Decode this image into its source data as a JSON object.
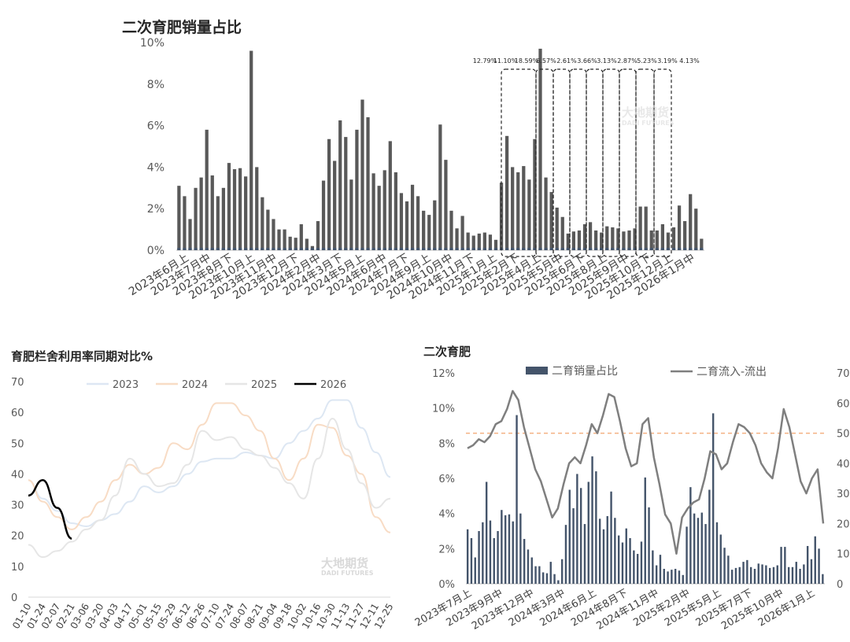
{
  "chart_data": [
    {
      "type": "bar",
      "title": "二次育肥销量占比",
      "yticks": [
        "0%",
        "2%",
        "4%",
        "6%",
        "8%",
        "10%"
      ],
      "ylim": [
        0,
        10
      ],
      "xticks": [
        "2023年6月上",
        "2023年7月中",
        "2023年8月下",
        "2023年10月上",
        "2023年11月中",
        "2023年12月下",
        "2024年2月中",
        "2024年3月下",
        "2024年5月上",
        "2024年6月中",
        "2024年7月下",
        "2024年9月上",
        "2024年10月中",
        "2024年11月下",
        "2025年1月上",
        "2025年2月下",
        "2025年4月上",
        "2025年5月中",
        "2025年6月下",
        "2025年8月上",
        "2025年9月中",
        "2025年10月下",
        "2025年12月上",
        "2026年1月中"
      ],
      "values": [
        3.1,
        2.6,
        1.5,
        3.0,
        3.5,
        5.8,
        3.6,
        2.6,
        3.0,
        4.2,
        3.9,
        3.95,
        3.55,
        9.6,
        4.0,
        2.55,
        1.95,
        1.5,
        1.0,
        1.0,
        0.65,
        0.6,
        1.25,
        0.55,
        0.2,
        1.4,
        3.35,
        5.35,
        4.3,
        6.25,
        5.45,
        3.4,
        5.8,
        7.25,
        6.4,
        3.7,
        3.1,
        3.85,
        5.25,
        3.75,
        2.75,
        2.35,
        3.15,
        2.6,
        1.9,
        1.7,
        2.4,
        6.05,
        4.35,
        1.9,
        1.05,
        1.65,
        0.85,
        0.7,
        0.8,
        0.85,
        0.75,
        0.5,
        3.25,
        5.5,
        4.0,
        3.75,
        4.05,
        3.4,
        5.35,
        9.7,
        3.5,
        2.8,
        2.05,
        1.6,
        0.8,
        0.9,
        0.95,
        1.25,
        1.35,
        0.95,
        0.85,
        1.15,
        1.1,
        1.05,
        0.9,
        0.95,
        1.05,
        2.1,
        2.1,
        0.95,
        0.95,
        1.25,
        0.85,
        1.1,
        2.15,
        1.4,
        2.7,
        2.0,
        0.55
      ],
      "box_labels": [
        "12.79%",
        "11.10%",
        "18.59%",
        "6.57%",
        "2.61%",
        "3.66%",
        "3.13%",
        "2.87%",
        "5.23%",
        "3.19%",
        "4.13%"
      ]
    },
    {
      "type": "line",
      "title": "育肥栏舍利用率同期对比%",
      "ylim": [
        0,
        70
      ],
      "yticks": [
        "0",
        "10",
        "20",
        "30",
        "40",
        "50",
        "60",
        "70"
      ],
      "xticks": [
        "01-10",
        "01-24",
        "02-07",
        "02-21",
        "03-06",
        "03-20",
        "04-03",
        "04-17",
        "05-01",
        "05-15",
        "05-29",
        "06-12",
        "06-26",
        "07-10",
        "07-24",
        "08-07",
        "08-21",
        "09-04",
        "09-18",
        "10-02",
        "10-16",
        "10-30",
        "11-13",
        "11-27",
        "12-11",
        "12-25"
      ],
      "series": [
        {
          "name": "2023",
          "color": "#dde7f3",
          "values": [
            38,
            32,
            28,
            24,
            23,
            25,
            27,
            31,
            36,
            34,
            36,
            40,
            44,
            45,
            45,
            47,
            46,
            45,
            50,
            54,
            58,
            64,
            64,
            55,
            47,
            39
          ]
        },
        {
          "name": "2024",
          "color": "#f8dcc5",
          "values": [
            38,
            31,
            26,
            22,
            26,
            31,
            38,
            43,
            40,
            42,
            50,
            48,
            56,
            63,
            63,
            59,
            54,
            45,
            38,
            45,
            56,
            55,
            46,
            40,
            26,
            21
          ]
        },
        {
          "name": "2025",
          "color": "#e6e6e6",
          "values": [
            17,
            13,
            15,
            18,
            22,
            25,
            33,
            45,
            40,
            36,
            37,
            43,
            54,
            51,
            52,
            48,
            46,
            42,
            37,
            32,
            45,
            58,
            48,
            37,
            29,
            32
          ]
        },
        {
          "name": "2026",
          "color": "#000000",
          "values": [
            33,
            38,
            29,
            19
          ]
        }
      ]
    },
    {
      "type": "bar+line",
      "title": "二次育肥",
      "yticks_left": [
        "0%",
        "2%",
        "4%",
        "6%",
        "8%",
        "10%",
        "12%"
      ],
      "yticks_right": [
        "0",
        "10",
        "20",
        "30",
        "40",
        "50",
        "60",
        "70"
      ],
      "xticks": [
        "2023年7月上",
        "2023年9月中",
        "2023年12月中",
        "2024年3月中",
        "2024年6月上",
        "2024年8月下",
        "2024年11月中",
        "2025年2月中",
        "2025年5月上",
        "2025年7月下",
        "2025年10月中",
        "2026年1月上"
      ],
      "series": [
        {
          "name": "二育销量占比",
          "color": "#44546a",
          "axis": "left"
        },
        {
          "name": "二育流入-流出",
          "color": "#7f7f7f",
          "axis": "right",
          "values": [
            45,
            46,
            48,
            47,
            49,
            53,
            54,
            58,
            64,
            61,
            52,
            45,
            38,
            34,
            28,
            22,
            25,
            33,
            40,
            42,
            40,
            46,
            53,
            50,
            56,
            63,
            62,
            54,
            45,
            39,
            40,
            53,
            55,
            42,
            33,
            23,
            20,
            10,
            22,
            25,
            27,
            28,
            35,
            44,
            43,
            38,
            40,
            47,
            53,
            52,
            50,
            46,
            40,
            37,
            35,
            45,
            58,
            52,
            43,
            34,
            30,
            35,
            38,
            20
          ]
        }
      ],
      "ref_line": 50
    }
  ],
  "watermarks": [
    "大地期货",
    "DADI FUTURES"
  ]
}
